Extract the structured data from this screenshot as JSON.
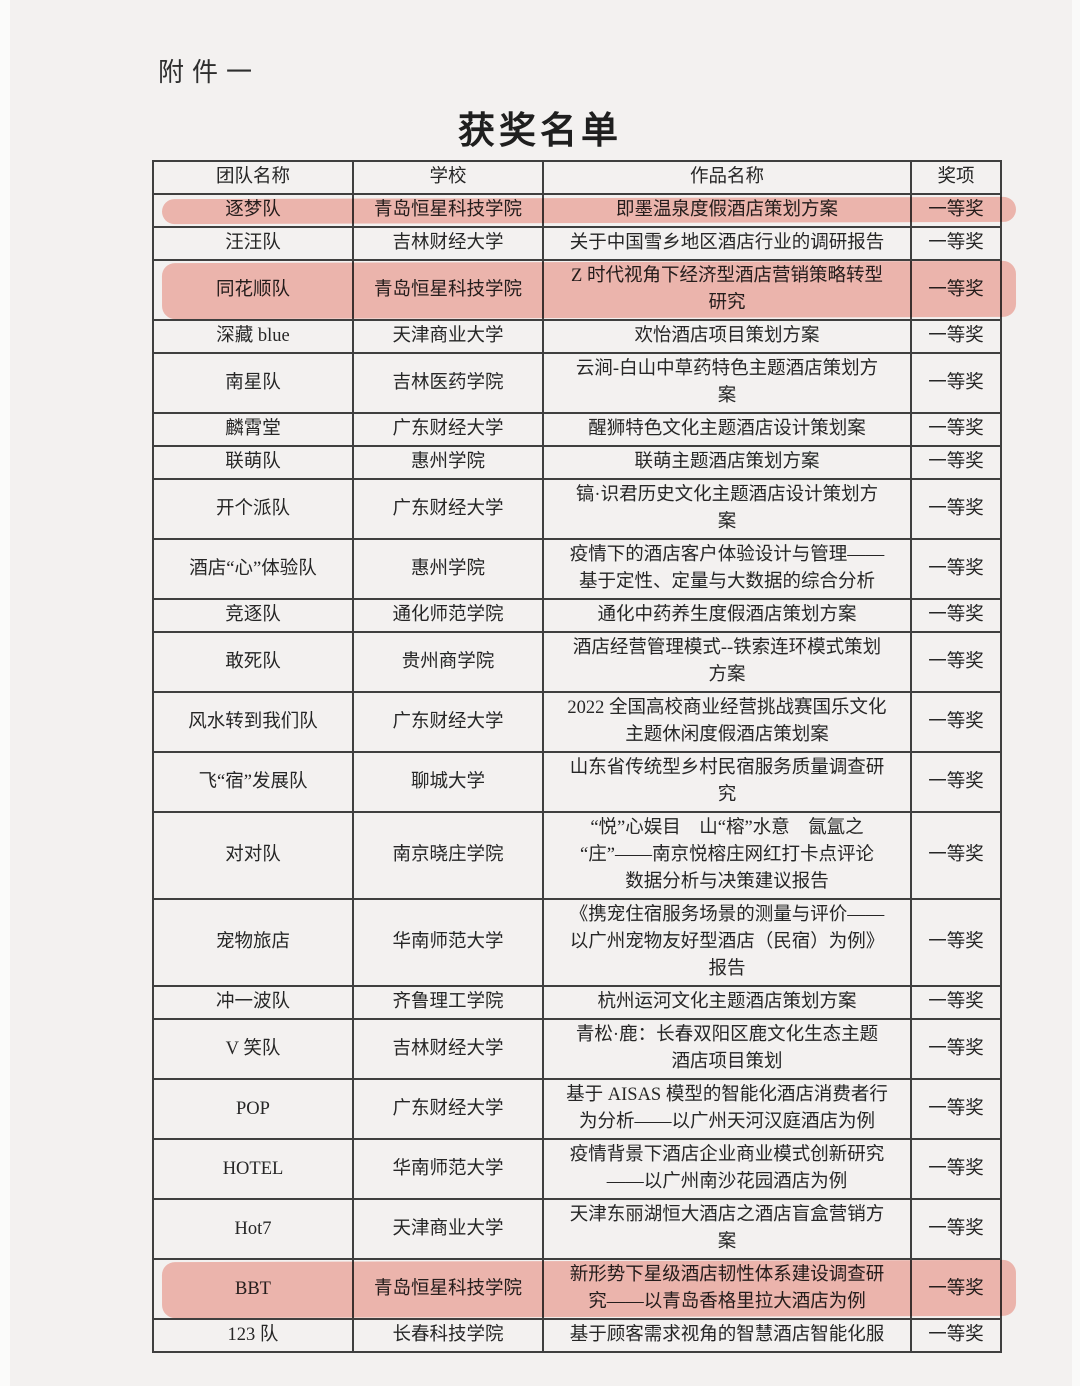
{
  "page": {
    "attachment_label": "附件一",
    "title": "获奖名单"
  },
  "colors": {
    "highlight_marker": "#f3b4aa",
    "table_border": "#3f3f3f",
    "page_background": "#f3f1f0",
    "text": "#262626"
  },
  "table": {
    "headers": [
      "团队名称",
      "学校",
      "作品名称",
      "奖项"
    ],
    "rows": [
      {
        "team": "逐梦队",
        "school": "青岛恒星科技学院",
        "work": "即墨温泉度假酒店策划方案",
        "award": "一等奖",
        "highlighted": true
      },
      {
        "team": "汪汪队",
        "school": "吉林财经大学",
        "work": "关于中国雪乡地区酒店行业的调研报告",
        "award": "一等奖",
        "highlighted": false
      },
      {
        "team": "同花顺队",
        "school": "青岛恒星科技学院",
        "work": "Z 时代视角下经济型酒店营销策略转型\n研究",
        "award": "一等奖",
        "highlighted": true
      },
      {
        "team": "深藏 blue",
        "school": "天津商业大学",
        "work": "欢怡酒店项目策划方案",
        "award": "一等奖",
        "highlighted": false
      },
      {
        "team": "南星队",
        "school": "吉林医药学院",
        "work": "云涧-白山中草药特色主题酒店策划方\n案",
        "award": "一等奖",
        "highlighted": false
      },
      {
        "team": "麟霄堂",
        "school": "广东财经大学",
        "work": "醒狮特色文化主题酒店设计策划案",
        "award": "一等奖",
        "highlighted": false
      },
      {
        "team": "联萌队",
        "school": "惠州学院",
        "work": "联萌主题酒店策划方案",
        "award": "一等奖",
        "highlighted": false
      },
      {
        "team": "开个派队",
        "school": "广东财经大学",
        "work": "镐·识君历史文化主题酒店设计策划方\n案",
        "award": "一等奖",
        "highlighted": false
      },
      {
        "team": "酒店“心”体验队",
        "school": "惠州学院",
        "work": "疫情下的酒店客户体验设计与管理——\n基于定性、定量与大数据的综合分析",
        "award": "一等奖",
        "highlighted": false
      },
      {
        "team": "竞逐队",
        "school": "通化师范学院",
        "work": "通化中药养生度假酒店策划方案",
        "award": "一等奖",
        "highlighted": false
      },
      {
        "team": "敢死队",
        "school": "贵州商学院",
        "work": "酒店经营管理模式--铁索连环模式策划\n方案",
        "award": "一等奖",
        "highlighted": false
      },
      {
        "team": "风水转到我们队",
        "school": "广东财经大学",
        "work": "2022 全国高校商业经营挑战赛国乐文化\n主题休闲度假酒店策划案",
        "award": "一等奖",
        "highlighted": false
      },
      {
        "team": "飞“宿”发展队",
        "school": "聊城大学",
        "work": "山东省传统型乡村民宿服务质量调查研\n究",
        "award": "一等奖",
        "highlighted": false
      },
      {
        "team": "对对队",
        "school": "南京晓庄学院",
        "work": "“悦”心娱目　山“榕”水意　氤氲之\n“庄”——南京悦榕庄网红打卡点评论\n数据分析与决策建议报告",
        "award": "一等奖",
        "highlighted": false
      },
      {
        "team": "宠物旅店",
        "school": "华南师范大学",
        "work": "《携宠住宿服务场景的测量与评价——\n以广州宠物友好型酒店（民宿）为例》\n报告",
        "award": "一等奖",
        "highlighted": false
      },
      {
        "team": "冲一波队",
        "school": "齐鲁理工学院",
        "work": "杭州运河文化主题酒店策划方案",
        "award": "一等奖",
        "highlighted": false
      },
      {
        "team": "V 笑队",
        "school": "吉林财经大学",
        "work": "青松·鹿：长春双阳区鹿文化生态主题\n酒店项目策划",
        "award": "一等奖",
        "highlighted": false
      },
      {
        "team": "POP",
        "school": "广东财经大学",
        "work": "基于 AISAS 模型的智能化酒店消费者行\n为分析——以广州天河汉庭酒店为例",
        "award": "一等奖",
        "highlighted": false
      },
      {
        "team": "HOTEL",
        "school": "华南师范大学",
        "work": "疫情背景下酒店企业商业模式创新研究\n——以广州南沙花园酒店为例",
        "award": "一等奖",
        "highlighted": false
      },
      {
        "team": "Hot7",
        "school": "天津商业大学",
        "work": "天津东丽湖恒大酒店之酒店盲盒营销方\n案",
        "award": "一等奖",
        "highlighted": false
      },
      {
        "team": "BBT",
        "school": "青岛恒星科技学院",
        "work": "新形势下星级酒店韧性体系建设调查研\n究——以青岛香格里拉大酒店为例",
        "award": "一等奖",
        "highlighted": true
      },
      {
        "team": "123 队",
        "school": "长春科技学院",
        "work": "基于顾客需求视角的智慧酒店智能化服",
        "award": "一等奖",
        "highlighted": false
      }
    ]
  }
}
